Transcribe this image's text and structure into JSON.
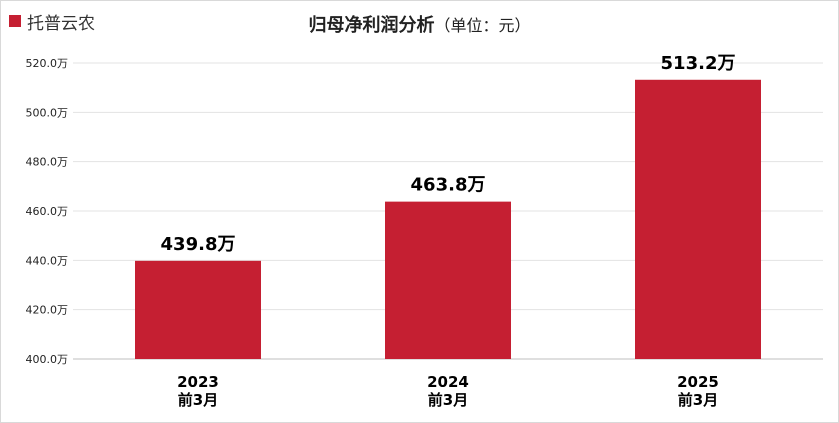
{
  "legend": {
    "label": "托普云农",
    "color": "#C51F32"
  },
  "title": {
    "main": "归母净利润分析",
    "unit": "（单位：元）"
  },
  "chart_data": {
    "type": "bar",
    "categories": [
      [
        "2023",
        "前3月"
      ],
      [
        "2024",
        "前3月"
      ],
      [
        "2025",
        "前3月"
      ]
    ],
    "series": [
      {
        "name": "托普云农",
        "values": [
          439.8,
          463.8,
          513.2
        ],
        "labels": [
          "439.8万",
          "463.8万",
          "513.2万"
        ]
      }
    ],
    "yticks": [
      "400.0万",
      "420.0万",
      "440.0万",
      "460.0万",
      "480.0万",
      "500.0万",
      "520.0万"
    ],
    "ylim": [
      400,
      520
    ],
    "grid": true,
    "legend_position": "top-left",
    "bar_color": "#C51F32"
  }
}
